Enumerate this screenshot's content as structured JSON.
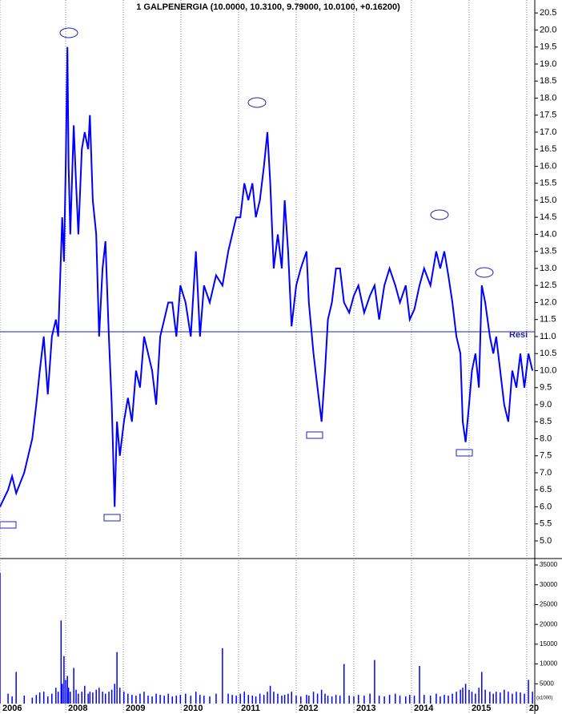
{
  "chart_data": [
    {
      "type": "line",
      "title": "1 GALPENERGIA (10.0000, 10.3100, 9.79000, 10.0100, +0.16200)",
      "color": "#0000ff",
      "xlim": [
        2006.86,
        2016.14
      ],
      "ylim": [
        4.53,
        20.88
      ],
      "yticks": [
        {
          "value": 5,
          "label": "5.0"
        },
        {
          "value": 5.5,
          "label": "5.5"
        },
        {
          "value": 6,
          "label": "6.0"
        },
        {
          "value": 6.5,
          "label": "6.5"
        },
        {
          "value": 7,
          "label": "7.0"
        },
        {
          "value": 7.5,
          "label": "7.5"
        },
        {
          "value": 8,
          "label": "8.0"
        },
        {
          "value": 8.5,
          "label": "8.5"
        },
        {
          "value": 9,
          "label": "9.0"
        },
        {
          "value": 9.5,
          "label": "9.5"
        },
        {
          "value": 10,
          "label": "10.0"
        },
        {
          "value": 10.5,
          "label": "10.5"
        },
        {
          "value": 11,
          "label": "11.0"
        },
        {
          "value": 11.5,
          "label": "11.5"
        },
        {
          "value": 12,
          "label": "12.0"
        },
        {
          "value": 12.5,
          "label": "12.5"
        },
        {
          "value": 13,
          "label": "13.0"
        },
        {
          "value": 13.5,
          "label": "13.5"
        },
        {
          "value": 14,
          "label": "14.0"
        },
        {
          "value": 14.5,
          "label": "14.5"
        },
        {
          "value": 15,
          "label": "15.0"
        },
        {
          "value": 15.5,
          "label": "15.5"
        },
        {
          "value": 16,
          "label": "16.0"
        },
        {
          "value": 16.5,
          "label": "16.5"
        },
        {
          "value": 17,
          "label": "17.0"
        },
        {
          "value": 17.5,
          "label": "17.5"
        },
        {
          "value": 18,
          "label": "18.0"
        },
        {
          "value": 18.5,
          "label": "18.5"
        },
        {
          "value": 19,
          "label": "19.0"
        },
        {
          "value": 19.5,
          "label": "19.5"
        },
        {
          "value": 20,
          "label": "20.0"
        },
        {
          "value": 20.5,
          "label": "20.5"
        }
      ],
      "resistance": {
        "label": "Resi",
        "value": 11.14,
        "color": "#2020a0"
      },
      "x": [
        2006.86,
        2007.0,
        2007.07,
        2007.14,
        2007.28,
        2007.42,
        2007.49,
        2007.55,
        2007.62,
        2007.69,
        2007.76,
        2007.83,
        2007.87,
        2007.92,
        2007.94,
        2007.97,
        2008.0,
        2008.03,
        2008.05,
        2008.08,
        2008.14,
        2008.18,
        2008.22,
        2008.28,
        2008.33,
        2008.39,
        2008.42,
        2008.47,
        2008.53,
        2008.58,
        2008.64,
        2008.69,
        2008.75,
        2008.8,
        2008.85,
        2008.89,
        2008.94,
        2009.01,
        2009.08,
        2009.15,
        2009.22,
        2009.29,
        2009.36,
        2009.43,
        2009.5,
        2009.57,
        2009.64,
        2009.71,
        2009.78,
        2009.85,
        2009.92,
        2009.99,
        2010.08,
        2010.17,
        2010.26,
        2010.33,
        2010.4,
        2010.5,
        2010.61,
        2010.72,
        2010.82,
        2010.89,
        2010.96,
        2011.03,
        2011.1,
        2011.17,
        2011.24,
        2011.3,
        2011.37,
        2011.44,
        2011.5,
        2011.55,
        2011.61,
        2011.68,
        2011.75,
        2011.8,
        2011.86,
        2011.92,
        2012.0,
        2012.08,
        2012.18,
        2012.22,
        2012.3,
        2012.37,
        2012.44,
        2012.5,
        2012.55,
        2012.62,
        2012.69,
        2012.76,
        2012.83,
        2012.92,
        2013.0,
        2013.08,
        2013.18,
        2013.28,
        2013.36,
        2013.44,
        2013.53,
        2013.62,
        2013.72,
        2013.8,
        2013.9,
        2013.97,
        2014.05,
        2014.14,
        2014.22,
        2014.33,
        2014.43,
        2014.5,
        2014.57,
        2014.64,
        2014.71,
        2014.78,
        2014.85,
        2014.89,
        2014.94,
        2015.0,
        2015.05,
        2015.11,
        2015.17,
        2015.22,
        2015.28,
        2015.36,
        2015.42,
        2015.47,
        2015.54,
        2015.61,
        2015.68,
        2015.75,
        2015.82,
        2015.89,
        2015.96,
        2016.03,
        2016.1
      ],
      "values": [
        6.0,
        6.5,
        6.9,
        6.4,
        7.0,
        8.0,
        9.0,
        10.0,
        11.0,
        9.3,
        11.0,
        11.5,
        11.0,
        13.5,
        14.5,
        13.2,
        16.0,
        19.5,
        16.0,
        14.0,
        17.2,
        15.5,
        14.0,
        16.5,
        17.0,
        16.5,
        17.5,
        15.0,
        14.0,
        11.0,
        13.0,
        13.8,
        11.0,
        9.0,
        6.0,
        8.5,
        7.5,
        8.5,
        9.2,
        8.5,
        10.0,
        9.5,
        11.0,
        10.5,
        10.0,
        9.0,
        11.0,
        11.5,
        12.0,
        12.0,
        11.0,
        12.5,
        12.0,
        11.0,
        13.5,
        11.0,
        12.5,
        12.0,
        12.8,
        12.5,
        13.5,
        14.0,
        14.5,
        14.5,
        15.5,
        15.0,
        15.5,
        14.5,
        15.0,
        16.0,
        17.0,
        15.5,
        13.0,
        14.0,
        13.0,
        15.0,
        13.5,
        11.3,
        12.5,
        13.0,
        13.5,
        12.0,
        10.5,
        9.5,
        8.5,
        10.0,
        11.5,
        12.0,
        13.0,
        13.0,
        12.0,
        11.7,
        12.2,
        12.5,
        11.7,
        12.2,
        12.5,
        11.5,
        12.5,
        13.0,
        12.5,
        12.0,
        12.5,
        11.5,
        11.8,
        12.5,
        13.0,
        12.5,
        13.5,
        13.0,
        13.5,
        12.8,
        12.0,
        11.0,
        10.5,
        8.5,
        7.9,
        9.0,
        10.0,
        10.5,
        9.5,
        12.5,
        12.0,
        11.0,
        10.5,
        11.0,
        10.0,
        9.0,
        8.5,
        10.0,
        9.5,
        10.5,
        9.5,
        10.5,
        10.0
      ]
    },
    {
      "type": "bar",
      "color": "#0000ff",
      "unit_label": "(x1000)",
      "xlim": [
        2006.86,
        2016.14
      ],
      "ylim": [
        0,
        36420
      ],
      "yticks": [
        5000,
        10000,
        15000,
        20000,
        25000,
        30000,
        35000
      ],
      "xticks": [
        {
          "value": 2006.86,
          "label": "2006"
        },
        2008,
        2009,
        2010,
        2011,
        2012,
        2013,
        2014,
        2015,
        {
          "value": 2016,
          "label": "20"
        }
      ],
      "x": [
        2006.86,
        2007.0,
        2007.07,
        2007.14,
        2007.28,
        2007.42,
        2007.49,
        2007.55,
        2007.62,
        2007.69,
        2007.76,
        2007.83,
        2007.87,
        2007.92,
        2007.94,
        2007.97,
        2008.0,
        2008.03,
        2008.05,
        2008.08,
        2008.14,
        2008.18,
        2008.22,
        2008.28,
        2008.33,
        2008.39,
        2008.42,
        2008.47,
        2008.53,
        2008.58,
        2008.64,
        2008.69,
        2008.75,
        2008.8,
        2008.85,
        2008.89,
        2008.94,
        2009.01,
        2009.08,
        2009.15,
        2009.22,
        2009.29,
        2009.36,
        2009.43,
        2009.5,
        2009.57,
        2009.64,
        2009.71,
        2009.78,
        2009.85,
        2009.92,
        2009.99,
        2010.08,
        2010.17,
        2010.26,
        2010.33,
        2010.4,
        2010.5,
        2010.61,
        2010.72,
        2010.82,
        2010.89,
        2010.96,
        2011.03,
        2011.1,
        2011.17,
        2011.24,
        2011.3,
        2011.37,
        2011.44,
        2011.5,
        2011.55,
        2011.61,
        2011.68,
        2011.75,
        2011.8,
        2011.86,
        2011.92,
        2012.0,
        2012.08,
        2012.18,
        2012.22,
        2012.3,
        2012.37,
        2012.44,
        2012.5,
        2012.55,
        2012.62,
        2012.69,
        2012.76,
        2012.83,
        2012.92,
        2013.0,
        2013.08,
        2013.18,
        2013.28,
        2013.36,
        2013.44,
        2013.53,
        2013.62,
        2013.72,
        2013.8,
        2013.9,
        2013.97,
        2014.05,
        2014.14,
        2014.22,
        2014.33,
        2014.43,
        2014.5,
        2014.57,
        2014.64,
        2014.71,
        2014.78,
        2014.85,
        2014.89,
        2014.94,
        2015.0,
        2015.05,
        2015.11,
        2015.17,
        2015.22,
        2015.28,
        2015.36,
        2015.42,
        2015.47,
        2015.54,
        2015.61,
        2015.68,
        2015.75,
        2015.82,
        2015.89,
        2015.96,
        2016.03,
        2016.1
      ],
      "values": [
        33000,
        2500,
        1800,
        8000,
        2000,
        1500,
        2200,
        2800,
        3000,
        1800,
        2500,
        4000,
        3000,
        21000,
        5000,
        12000,
        6000,
        7000,
        4000,
        3000,
        9000,
        3500,
        2500,
        3000,
        4500,
        2500,
        3000,
        2800,
        3500,
        4000,
        3000,
        2500,
        3000,
        3500,
        5000,
        13000,
        4000,
        3000,
        2500,
        2200,
        2000,
        2500,
        3000,
        2000,
        1800,
        2500,
        2200,
        2000,
        2500,
        1800,
        2000,
        2200,
        2500,
        2000,
        3000,
        2200,
        2000,
        1800,
        2500,
        14000,
        2500,
        2200,
        2000,
        2500,
        3000,
        2200,
        2000,
        1800,
        2500,
        2200,
        3000,
        4500,
        3000,
        2500,
        2000,
        2200,
        2500,
        3000,
        2000,
        1800,
        2200,
        2000,
        3000,
        2500,
        3500,
        2500,
        2000,
        1800,
        2200,
        2000,
        10000,
        2000,
        1800,
        2200,
        2000,
        2500,
        11000,
        2000,
        1800,
        2200,
        2500,
        2000,
        1800,
        2200,
        2000,
        9500,
        2200,
        2000,
        2500,
        1800,
        2200,
        2000,
        2500,
        3000,
        3500,
        4000,
        5000,
        3500,
        3000,
        2500,
        4000,
        8000,
        3500,
        3000,
        2500,
        3000,
        2800,
        3500,
        3000,
        2500,
        3000,
        2800,
        2500,
        6000,
        3000
      ]
    }
  ]
}
